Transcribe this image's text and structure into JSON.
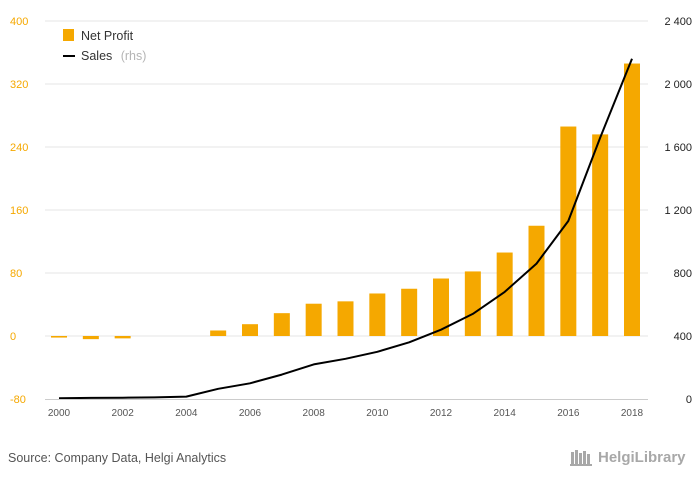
{
  "chart_data": {
    "type": "bar",
    "x": [
      "2000",
      "2001",
      "2002",
      "2003",
      "2004",
      "2005",
      "2006",
      "2007",
      "2008",
      "2009",
      "2010",
      "2011",
      "2012",
      "2013",
      "2014",
      "2015",
      "2016",
      "2017",
      "2018"
    ],
    "x_tick_labels": [
      "2000",
      "2002",
      "2004",
      "2006",
      "2008",
      "2010",
      "2012",
      "2014",
      "2016",
      "2018"
    ],
    "series": [
      {
        "name": "Net Profit",
        "type": "bar",
        "axis": "left",
        "color": "#f5a800",
        "values": [
          -2,
          -4,
          -3,
          0,
          0,
          7,
          15,
          29,
          41,
          44,
          54,
          60,
          73,
          82,
          106,
          140,
          266,
          256,
          346
        ]
      },
      {
        "name": "Sales",
        "name_suffix": "(rhs)",
        "type": "line",
        "axis": "right",
        "color": "#000000",
        "values": [
          5,
          7,
          8,
          10,
          15,
          65,
          100,
          155,
          220,
          255,
          300,
          360,
          440,
          540,
          680,
          860,
          1130,
          1660,
          2160
        ]
      }
    ],
    "y_left": {
      "range": [
        -80,
        400
      ],
      "ticks": [
        -80,
        0,
        80,
        160,
        240,
        320,
        400
      ],
      "tick_labels": [
        "-80",
        "0",
        "80",
        "160",
        "240",
        "320",
        "400"
      ]
    },
    "y_right": {
      "range": [
        0,
        2400
      ],
      "ticks": [
        0,
        400,
        800,
        1200,
        1600,
        2000,
        2400
      ],
      "tick_labels": [
        "0",
        "400",
        "800",
        "1 200",
        "1 600",
        "2 000",
        "2 400"
      ]
    },
    "grid": true,
    "legend_position": "top-left"
  },
  "footer": {
    "source": "Source: Company Data, Helgi Analytics",
    "brand": "HelgiLibrary"
  }
}
